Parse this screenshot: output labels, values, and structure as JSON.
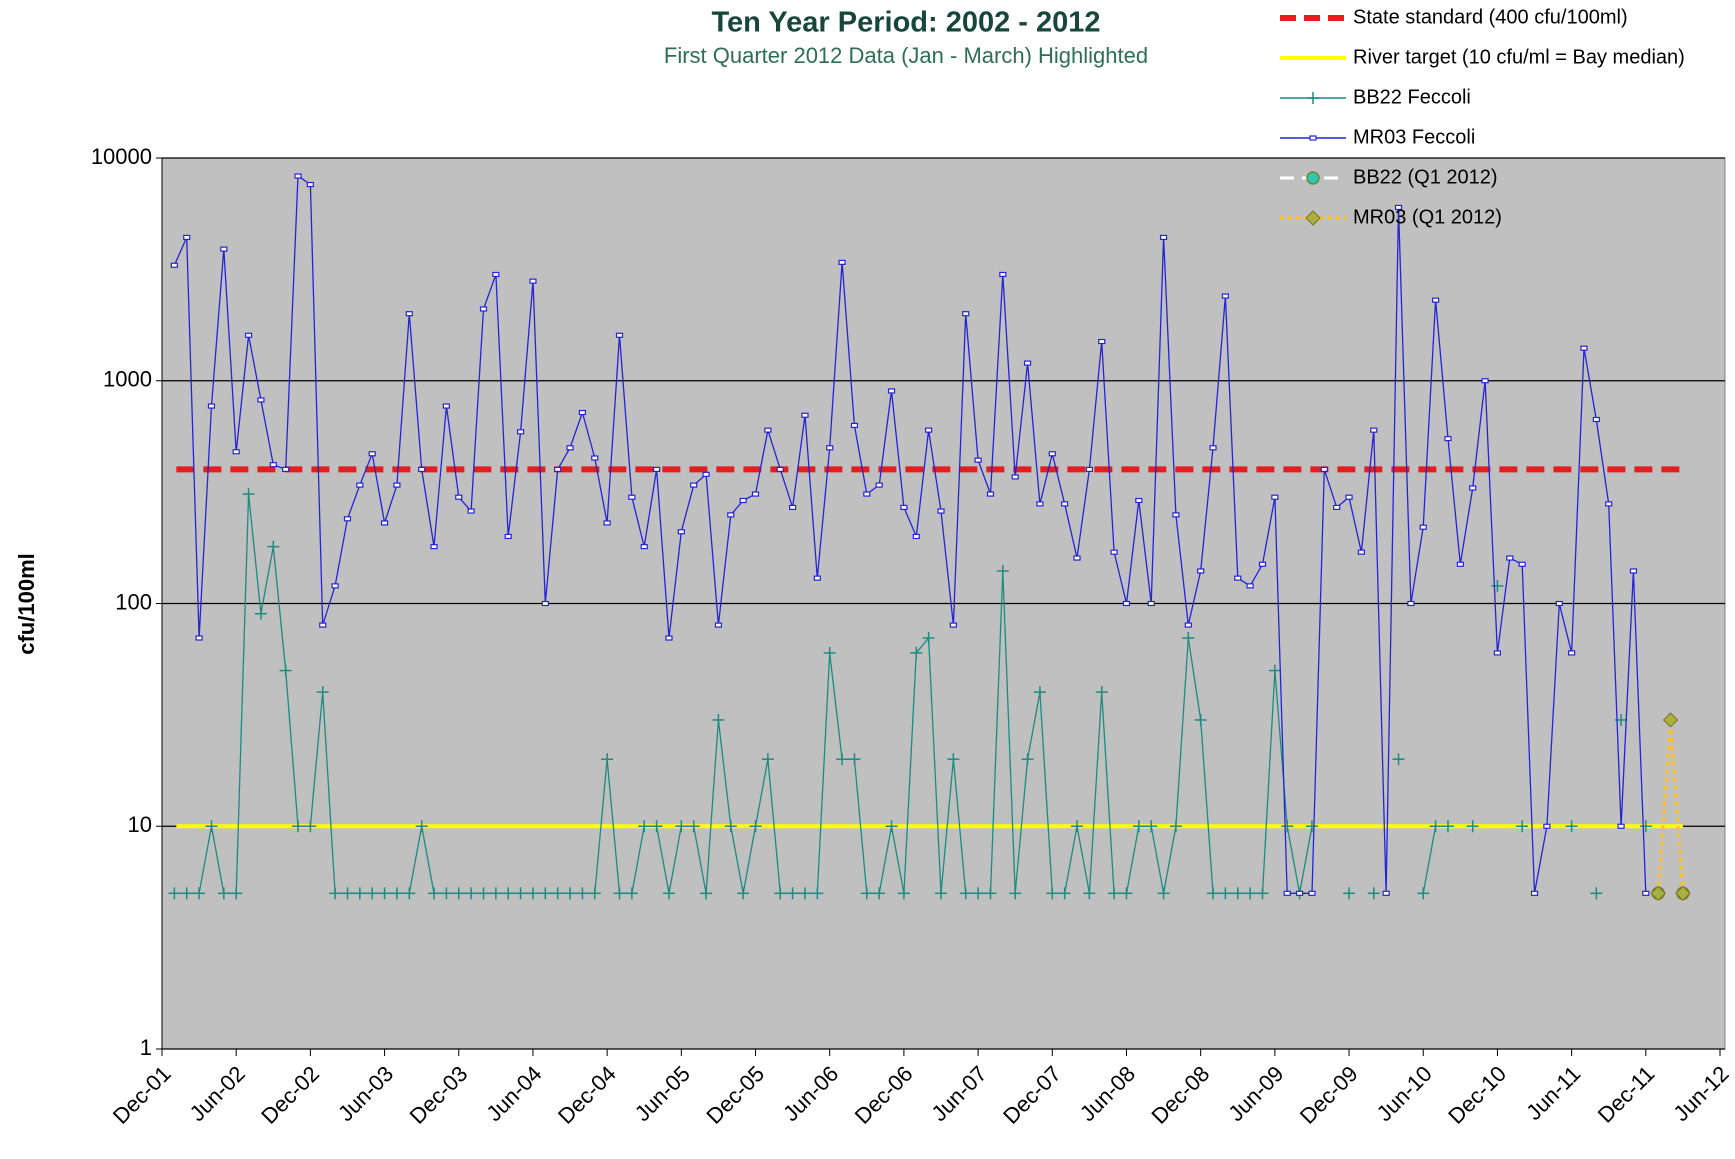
{
  "chart_data": {
    "type": "line",
    "title": "Ten Year Period:  2002 -  2012",
    "subtitle": "First Quarter 2012 Data (Jan - March) Highlighted",
    "y_label": "cfu/100ml",
    "log_scale": true,
    "grid": true,
    "legend_position": "top-right",
    "ylim": [
      1,
      10000
    ],
    "yticks": [
      1,
      10,
      100,
      1000,
      10000
    ],
    "xlim": [
      "Dec-01",
      "Jun-12"
    ],
    "xticks": [
      "Dec-01",
      "Jun-02",
      "Dec-02",
      "Jun-03",
      "Dec-03",
      "Jun-04",
      "Dec-04",
      "Jun-05",
      "Dec-05",
      "Jun-06",
      "Dec-06",
      "Jun-07",
      "Dec-07",
      "Jun-08",
      "Dec-08",
      "Jun-09",
      "Dec-09",
      "Jun-10",
      "Dec-10",
      "Jun-11",
      "Dec-11",
      "Jun-12"
    ],
    "reference_lines": [
      {
        "name": "State standard   (400 cfu/100ml)",
        "value": 400,
        "color": "#e41e1e",
        "line_style": "dashed"
      },
      {
        "name": "River target (10 cfu/ml = Bay median)",
        "value": 10,
        "color": "#ffff00",
        "line_style": "solid"
      }
    ],
    "x": [
      "Jan-02",
      "Feb-02",
      "Mar-02",
      "Apr-02",
      "May-02",
      "Jun-02",
      "Jul-02",
      "Aug-02",
      "Sep-02",
      "Oct-02",
      "Nov-02",
      "Dec-02",
      "Jan-03",
      "Feb-03",
      "Mar-03",
      "Apr-03",
      "May-03",
      "Jun-03",
      "Jul-03",
      "Aug-03",
      "Sep-03",
      "Oct-03",
      "Nov-03",
      "Dec-03",
      "Jan-04",
      "Feb-04",
      "Mar-04",
      "Apr-04",
      "May-04",
      "Jun-04",
      "Jul-04",
      "Aug-04",
      "Sep-04",
      "Oct-04",
      "Nov-04",
      "Dec-04",
      "Jan-05",
      "Feb-05",
      "Mar-05",
      "Apr-05",
      "May-05",
      "Jun-05",
      "Jul-05",
      "Aug-05",
      "Sep-05",
      "Oct-05",
      "Nov-05",
      "Dec-05",
      "Jan-06",
      "Feb-06",
      "Mar-06",
      "Apr-06",
      "May-06",
      "Jun-06",
      "Jul-06",
      "Aug-06",
      "Sep-06",
      "Oct-06",
      "Nov-06",
      "Dec-06",
      "Jan-07",
      "Feb-07",
      "Mar-07",
      "Apr-07",
      "May-07",
      "Jun-07",
      "Jul-07",
      "Aug-07",
      "Sep-07",
      "Oct-07",
      "Nov-07",
      "Dec-07",
      "Jan-08",
      "Feb-08",
      "Mar-08",
      "Apr-08",
      "May-08",
      "Jun-08",
      "Jul-08",
      "Aug-08",
      "Sep-08",
      "Oct-08",
      "Nov-08",
      "Dec-08",
      "Jan-09",
      "Feb-09",
      "Mar-09",
      "Apr-09",
      "May-09",
      "Jun-09",
      "Jul-09",
      "Aug-09",
      "Sep-09",
      "Oct-09",
      "Nov-09",
      "Dec-09",
      "Jan-10",
      "Feb-10",
      "Mar-10",
      "Apr-10",
      "May-10",
      "Jun-10",
      "Jul-10",
      "Aug-10",
      "Sep-10",
      "Oct-10",
      "Nov-10",
      "Dec-10",
      "Jan-11",
      "Feb-11",
      "Mar-11",
      "Apr-11",
      "May-11",
      "Jun-11",
      "Jul-11",
      "Aug-11",
      "Sep-11",
      "Oct-11",
      "Nov-11",
      "Dec-11"
    ],
    "series": [
      {
        "name": "BB22 Feccoli",
        "color": "#1e8b80",
        "marker": "plus",
        "line_style": "solid",
        "values": [
          5,
          5,
          5,
          10,
          5,
          5,
          310,
          90,
          180,
          50,
          10,
          10,
          40,
          5,
          5,
          5,
          5,
          5,
          5,
          5,
          10,
          5,
          5,
          5,
          5,
          5,
          5,
          5,
          5,
          5,
          5,
          5,
          5,
          5,
          5,
          20,
          5,
          5,
          10,
          10,
          5,
          10,
          10,
          5,
          30,
          10,
          5,
          10,
          20,
          5,
          5,
          5,
          5,
          60,
          20,
          20,
          5,
          5,
          10,
          5,
          60,
          70,
          5,
          20,
          5,
          5,
          5,
          140,
          5,
          20,
          40,
          5,
          5,
          10,
          5,
          40,
          5,
          5,
          10,
          10,
          5,
          10,
          70,
          30,
          5,
          5,
          5,
          5,
          5,
          50,
          10,
          5,
          10,
          null,
          null,
          5,
          null,
          5,
          null,
          20,
          null,
          5,
          10,
          10,
          null,
          10,
          null,
          120,
          null,
          10,
          null,
          null,
          null,
          10,
          null,
          5,
          null,
          30,
          null,
          10
        ]
      },
      {
        "name": "MR03 Feccoli",
        "color": "#2424d4",
        "marker": "square",
        "line_style": "solid",
        "values": [
          3300,
          4400,
          70,
          770,
          3900,
          480,
          1600,
          820,
          420,
          400,
          8300,
          7600,
          80,
          120,
          240,
          340,
          470,
          230,
          340,
          2000,
          400,
          180,
          770,
          300,
          260,
          2100,
          3000,
          200,
          590,
          2800,
          100,
          400,
          500,
          720,
          450,
          230,
          1600,
          300,
          180,
          400,
          70,
          210,
          340,
          380,
          80,
          250,
          290,
          310,
          600,
          400,
          270,
          700,
          130,
          500,
          3400,
          630,
          310,
          340,
          900,
          270,
          200,
          600,
          260,
          80,
          2000,
          440,
          310,
          3000,
          370,
          1200,
          280,
          470,
          280,
          160,
          400,
          1500,
          170,
          100,
          290,
          100,
          4400,
          250,
          80,
          140,
          500,
          2400,
          130,
          120,
          150,
          300,
          5,
          5,
          5,
          400,
          270,
          300,
          170,
          600,
          5,
          6000,
          100,
          220,
          2300,
          550,
          150,
          330,
          1000,
          60,
          160,
          150,
          5,
          10,
          100,
          60,
          1400,
          670,
          280,
          10,
          140,
          5
        ]
      },
      {
        "name": "BB22 (Q1 2012)",
        "color": "#ffffff",
        "marker_color": "#30c8b0",
        "marker": "circle",
        "line_style": "dashed",
        "x": [
          "Jan-12",
          "Feb-12",
          "Mar-12"
        ],
        "values": [
          5,
          null,
          5
        ]
      },
      {
        "name": "MR03 (Q1 2012)",
        "color": "#ffc020",
        "marker_color": "#a8b040",
        "marker": "diamond",
        "line_style": "dotted",
        "x": [
          "Jan-12",
          "Feb-12",
          "Mar-12"
        ],
        "values": [
          5,
          30,
          5
        ]
      }
    ]
  }
}
